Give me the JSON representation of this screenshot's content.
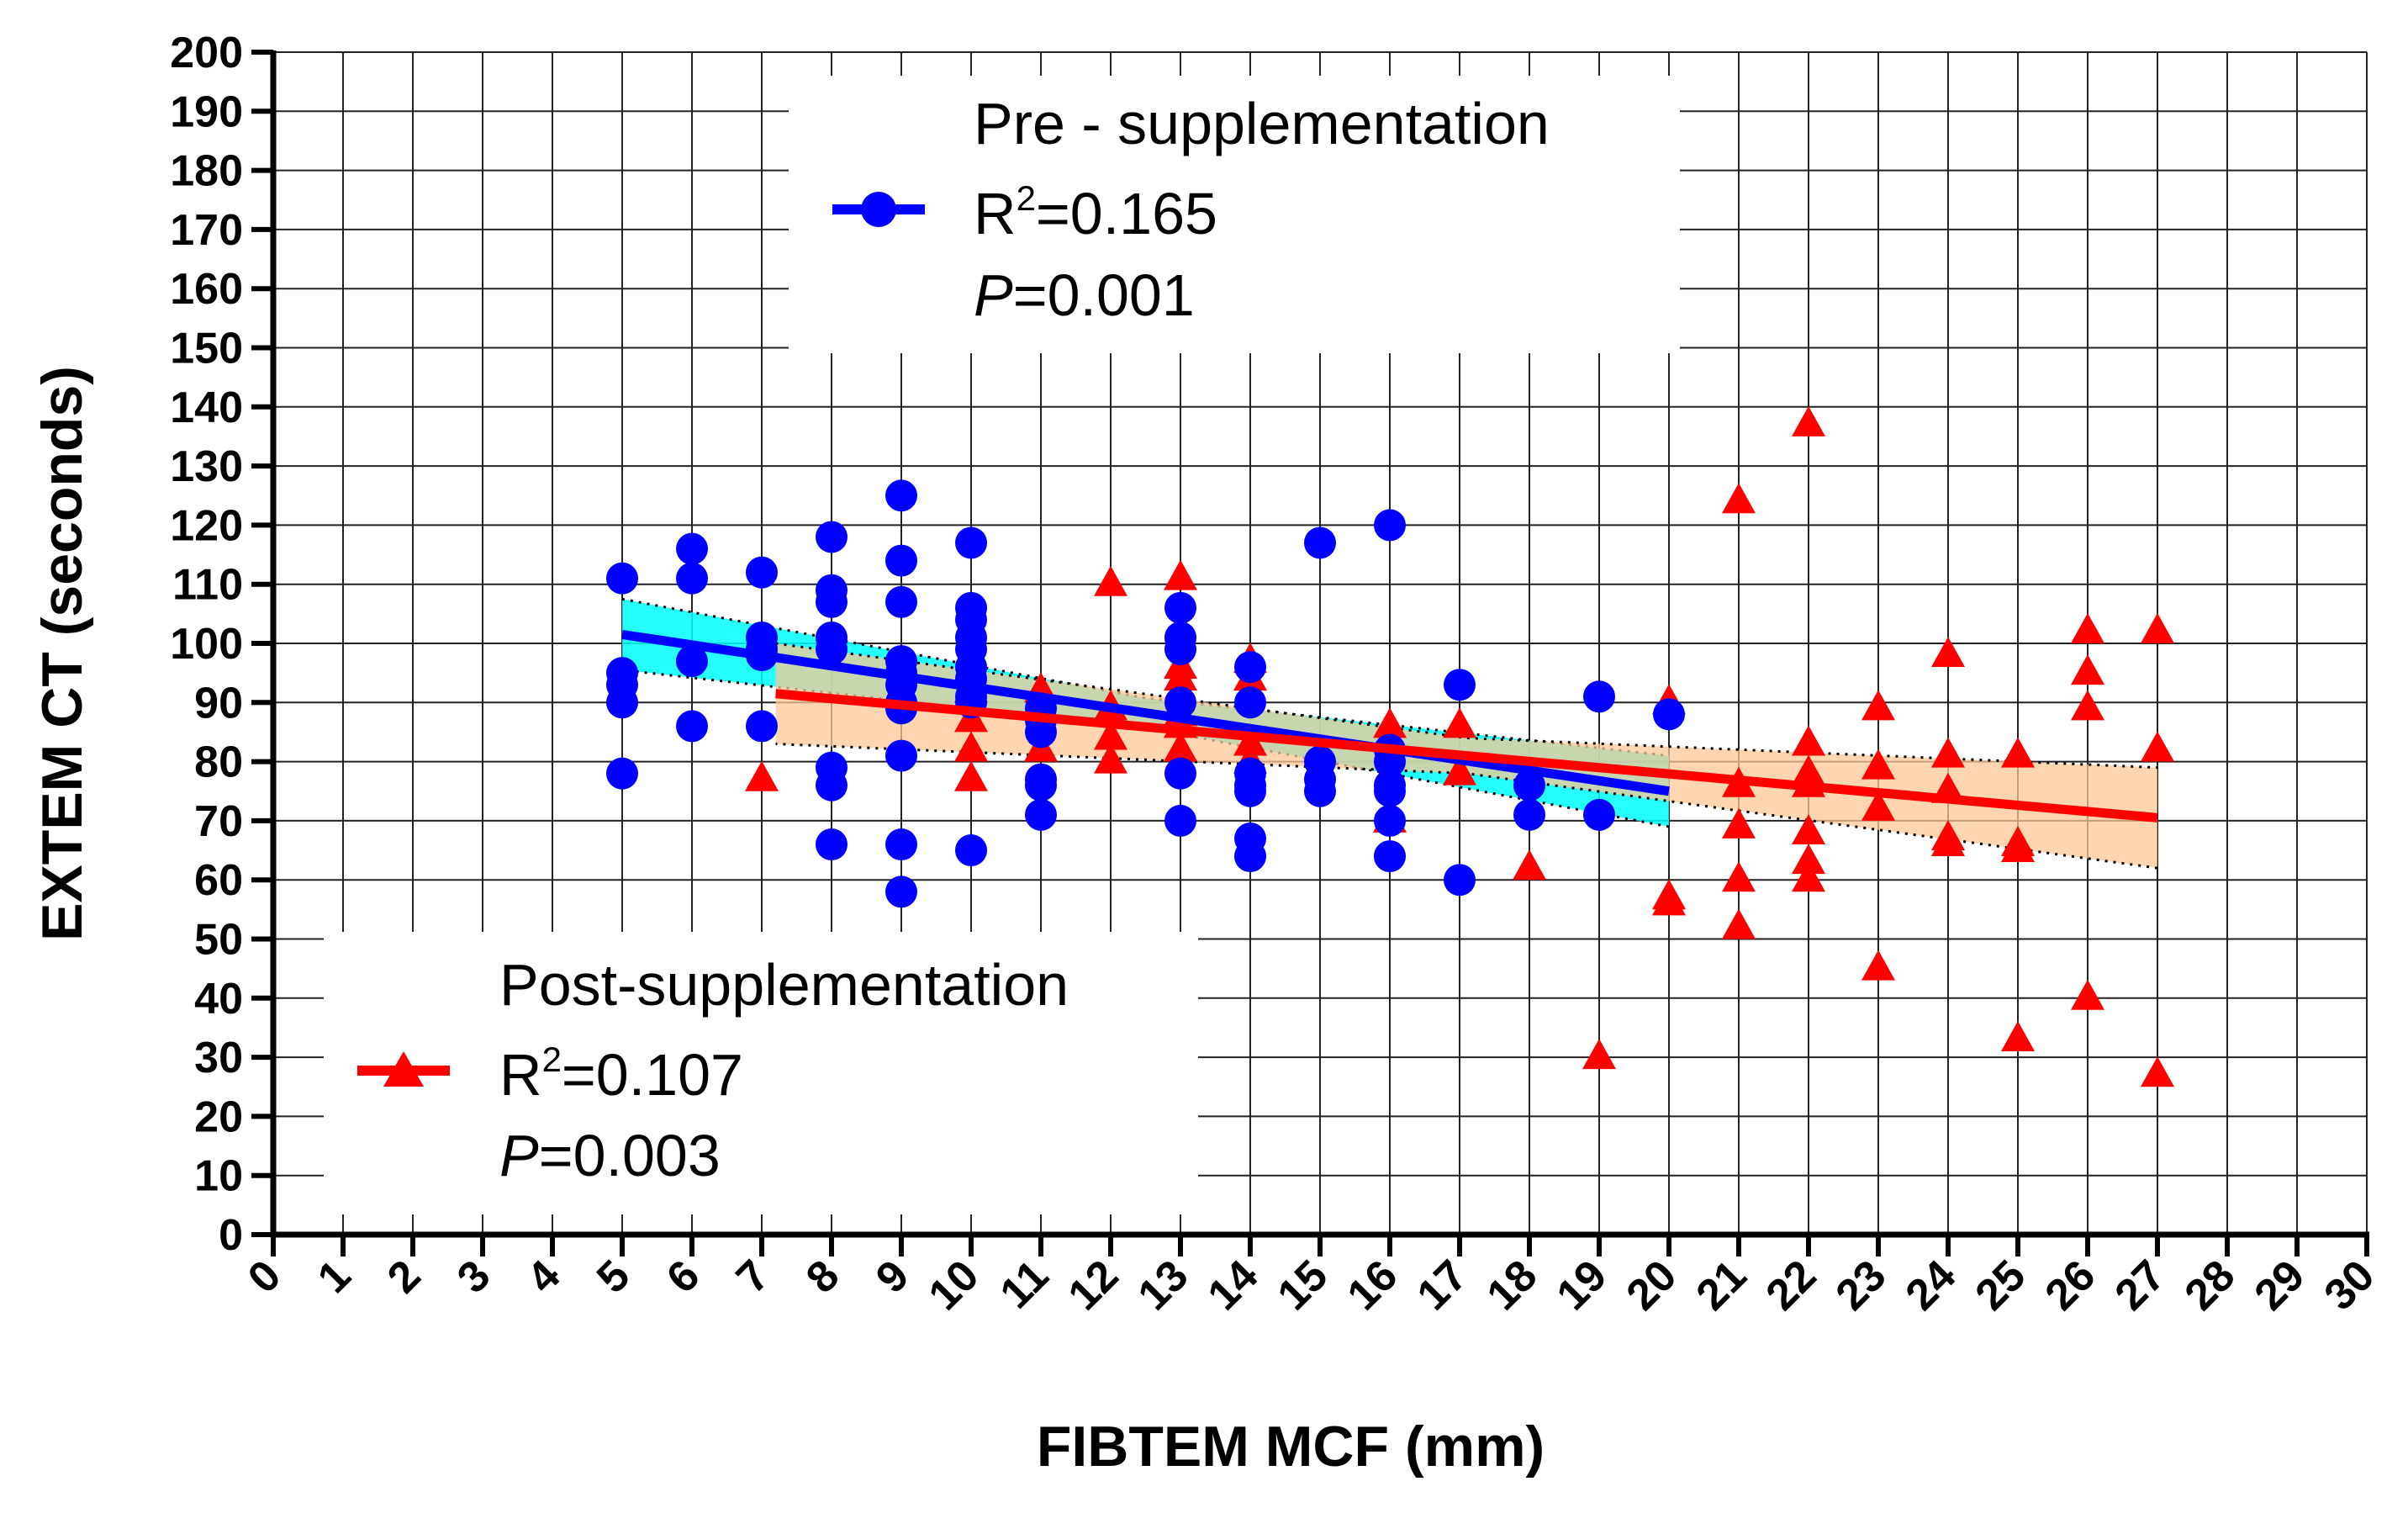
{
  "chart_data": {
    "type": "scatter",
    "xlabel": "FIBTEM MCF (mm)",
    "ylabel": "EXTEM CT (seconds)",
    "xlim": [
      0,
      30
    ],
    "ylim": [
      0,
      200
    ],
    "x_ticks": [
      0,
      1,
      2,
      3,
      4,
      5,
      6,
      7,
      8,
      9,
      10,
      11,
      12,
      13,
      14,
      15,
      16,
      17,
      18,
      19,
      20,
      21,
      22,
      23,
      24,
      25,
      26,
      27,
      28,
      29,
      30
    ],
    "y_ticks": [
      0,
      10,
      20,
      30,
      40,
      50,
      60,
      70,
      80,
      90,
      100,
      110,
      120,
      130,
      140,
      150,
      160,
      170,
      180,
      190,
      200
    ],
    "grid": true,
    "series": [
      {
        "name": "Pre - supplementation",
        "marker": "circle",
        "color": "#0000ff",
        "r2_prefix": "R",
        "r2_sup": "2",
        "r2_value": "=0.165",
        "p_label": "P",
        "p_value": "=0.001",
        "legend_position": "top-center",
        "fit": {
          "x": [
            5,
            20
          ],
          "y": [
            101.5,
            75
          ],
          "ci_band_color": "#00ffff"
        },
        "points": [
          [
            5,
            111
          ],
          [
            5,
            95
          ],
          [
            5,
            93
          ],
          [
            5,
            90
          ],
          [
            5,
            78
          ],
          [
            6,
            116
          ],
          [
            6,
            111
          ],
          [
            6,
            97
          ],
          [
            6,
            86
          ],
          [
            7,
            112
          ],
          [
            7,
            101
          ],
          [
            7,
            99
          ],
          [
            7,
            98
          ],
          [
            7,
            86
          ],
          [
            8,
            118
          ],
          [
            8,
            109
          ],
          [
            8,
            107
          ],
          [
            8,
            101
          ],
          [
            8,
            99
          ],
          [
            8,
            79
          ],
          [
            8,
            76
          ],
          [
            8,
            66
          ],
          [
            9,
            125
          ],
          [
            9,
            114
          ],
          [
            9,
            107
          ],
          [
            9,
            97
          ],
          [
            9,
            95
          ],
          [
            9,
            93
          ],
          [
            9,
            90
          ],
          [
            9,
            89
          ],
          [
            9,
            81
          ],
          [
            9,
            66
          ],
          [
            9,
            58
          ],
          [
            10,
            117
          ],
          [
            10,
            106
          ],
          [
            10,
            104
          ],
          [
            10,
            101
          ],
          [
            10,
            99
          ],
          [
            10,
            96
          ],
          [
            10,
            94
          ],
          [
            10,
            91
          ],
          [
            10,
            90
          ],
          [
            10,
            65
          ],
          [
            11,
            89
          ],
          [
            11,
            87
          ],
          [
            11,
            85
          ],
          [
            11,
            77
          ],
          [
            11,
            76
          ],
          [
            11,
            71
          ],
          [
            13,
            106
          ],
          [
            13,
            101
          ],
          [
            13,
            99
          ],
          [
            13,
            90
          ],
          [
            13,
            78
          ],
          [
            13,
            70
          ],
          [
            14,
            96
          ],
          [
            14,
            90
          ],
          [
            14,
            78
          ],
          [
            14,
            76
          ],
          [
            14,
            75
          ],
          [
            14,
            67
          ],
          [
            14,
            64
          ],
          [
            15,
            117
          ],
          [
            15,
            80
          ],
          [
            15,
            77
          ],
          [
            15,
            75
          ],
          [
            16,
            120
          ],
          [
            16,
            82
          ],
          [
            16,
            80
          ],
          [
            16,
            76
          ],
          [
            16,
            75
          ],
          [
            16,
            70
          ],
          [
            16,
            64
          ],
          [
            17,
            93
          ],
          [
            17,
            60
          ],
          [
            18,
            76
          ],
          [
            18,
            71
          ],
          [
            19,
            91
          ],
          [
            19,
            71
          ],
          [
            20,
            88
          ]
        ]
      },
      {
        "name": "Post-supplementation",
        "marker": "triangle",
        "color": "#ff0000",
        "r2_prefix": "R",
        "r2_sup": "2",
        "r2_value": "=0.107",
        "p_label": "P",
        "p_value": "=0.003",
        "legend_position": "bottom-left",
        "fit": {
          "x": [
            7.2,
            27
          ],
          "y": [
            91.5,
            70.5
          ],
          "ci_band_color": "#ffc896"
        },
        "points": [
          [
            7,
            77
          ],
          [
            10,
            92
          ],
          [
            10,
            87
          ],
          [
            10,
            82
          ],
          [
            10,
            77
          ],
          [
            11,
            92
          ],
          [
            11,
            82
          ],
          [
            12,
            110
          ],
          [
            12,
            89
          ],
          [
            12,
            84
          ],
          [
            12,
            80
          ],
          [
            13,
            111
          ],
          [
            13,
            96
          ],
          [
            13,
            94
          ],
          [
            13,
            88
          ],
          [
            13,
            86
          ],
          [
            13,
            82
          ],
          [
            14,
            97
          ],
          [
            14,
            94
          ],
          [
            14,
            83
          ],
          [
            14,
            80
          ],
          [
            16,
            86
          ],
          [
            16,
            70
          ],
          [
            17,
            86
          ],
          [
            17,
            78
          ],
          [
            18,
            62
          ],
          [
            19,
            30
          ],
          [
            20,
            90
          ],
          [
            20,
            57
          ],
          [
            20,
            56
          ],
          [
            21,
            124
          ],
          [
            21,
            76
          ],
          [
            21,
            69
          ],
          [
            21,
            60
          ],
          [
            21,
            52
          ],
          [
            22,
            137
          ],
          [
            22,
            83
          ],
          [
            22,
            78
          ],
          [
            22,
            76
          ],
          [
            22,
            68
          ],
          [
            22,
            63
          ],
          [
            22,
            60
          ],
          [
            23,
            89
          ],
          [
            23,
            79
          ],
          [
            23,
            72
          ],
          [
            23,
            45
          ],
          [
            24,
            98
          ],
          [
            24,
            81
          ],
          [
            24,
            75
          ],
          [
            24,
            67
          ],
          [
            24,
            66
          ],
          [
            25,
            81
          ],
          [
            25,
            66
          ],
          [
            25,
            65
          ],
          [
            25,
            33
          ],
          [
            26,
            102
          ],
          [
            26,
            95
          ],
          [
            26,
            89
          ],
          [
            26,
            40
          ],
          [
            27,
            102
          ],
          [
            27,
            82
          ],
          [
            27,
            27
          ]
        ]
      }
    ]
  }
}
